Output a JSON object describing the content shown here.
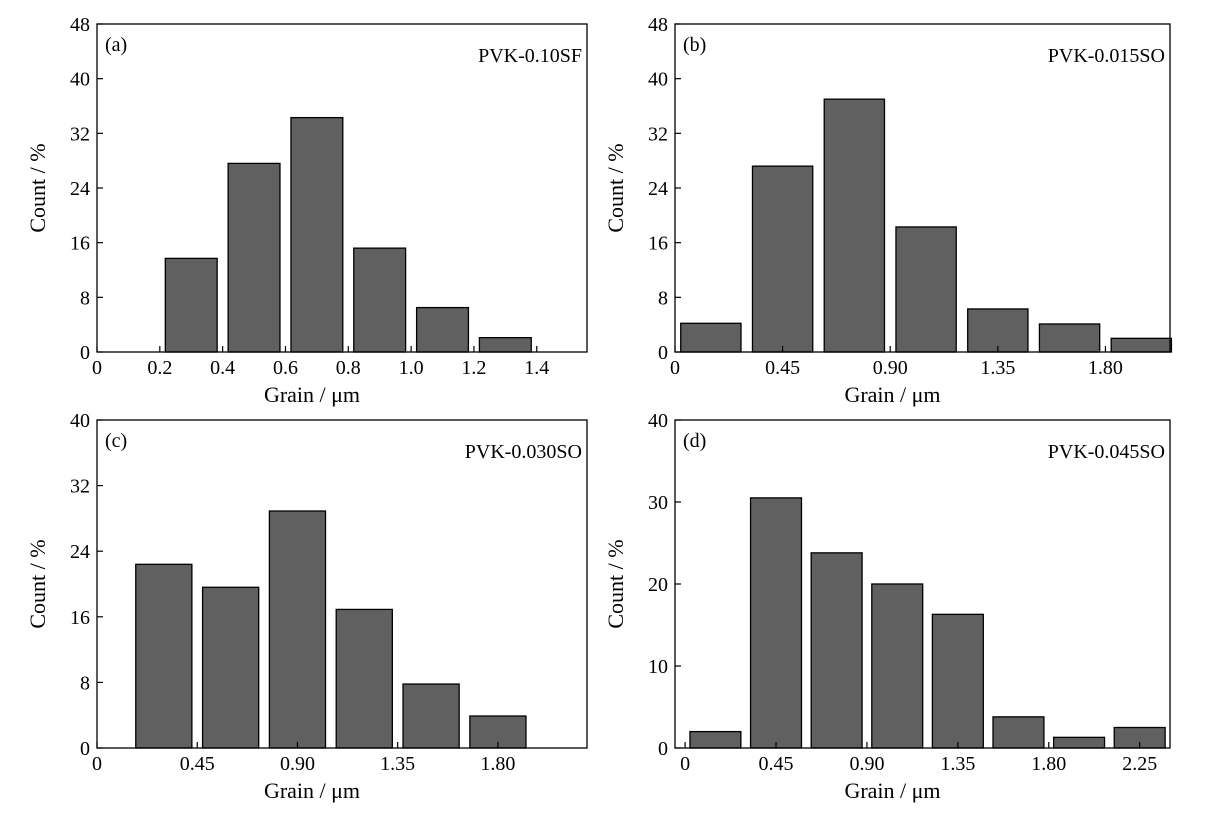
{
  "chart_data": [
    {
      "type": "bar",
      "panel_label": "(a)",
      "sample_label": "PVK-0.10SF",
      "xlabel": "Grain / μm",
      "ylabel": "Count / %",
      "xlim": [
        0,
        1.56
      ],
      "ylim": [
        0,
        48
      ],
      "xticks": [
        0,
        0.2,
        0.4,
        0.6,
        0.8,
        1.0,
        1.2,
        1.4
      ],
      "xtick_labels": [
        "0",
        "0.2",
        "0.4",
        "0.6",
        "0.8",
        "1.0",
        "1.2",
        "1.4"
      ],
      "yticks": [
        0,
        8,
        16,
        24,
        32,
        40,
        48
      ],
      "ytick_labels": [
        "0",
        "8",
        "16",
        "24",
        "32",
        "40",
        "48"
      ],
      "bin_width": 0.2,
      "bar_width": 0.165,
      "x": [
        0.3,
        0.5,
        0.7,
        0.9,
        1.1,
        1.3
      ],
      "values": [
        13.7,
        27.6,
        34.3,
        15.2,
        6.5,
        2.1
      ]
    },
    {
      "type": "bar",
      "panel_label": "(b)",
      "sample_label": "PVK-0.015SO",
      "xlabel": "Grain / μm",
      "ylabel": "Count / %",
      "xlim": [
        0,
        2.07
      ],
      "ylim": [
        0,
        48
      ],
      "xticks": [
        0,
        0.45,
        0.9,
        1.35,
        1.8
      ],
      "xtick_labels": [
        "0",
        "0.45",
        "0.90",
        "1.35",
        "1.80"
      ],
      "yticks": [
        0,
        8,
        16,
        24,
        32,
        40,
        48
      ],
      "ytick_labels": [
        "0",
        "8",
        "16",
        "24",
        "32",
        "40",
        "48"
      ],
      "bin_width": 0.3,
      "bar_width": 0.252,
      "x": [
        0.15,
        0.45,
        0.75,
        1.05,
        1.35,
        1.65,
        1.95
      ],
      "values": [
        4.2,
        27.2,
        37.0,
        18.3,
        6.3,
        4.1,
        2.0
      ]
    },
    {
      "type": "bar",
      "panel_label": "(c)",
      "sample_label": "PVK-0.030SO",
      "xlabel": "Grain / μm",
      "ylabel": "Count / %",
      "xlim": [
        0,
        2.2
      ],
      "ylim": [
        0,
        40
      ],
      "xticks": [
        0,
        0.45,
        0.9,
        1.35,
        1.8
      ],
      "xtick_labels": [
        "0",
        "0.45",
        "0.90",
        "1.35",
        "1.80"
      ],
      "yticks": [
        0,
        8,
        16,
        24,
        32,
        40
      ],
      "ytick_labels": [
        "0",
        "8",
        "16",
        "24",
        "32",
        "40"
      ],
      "bin_width": 0.3,
      "bar_width": 0.252,
      "x": [
        0.3,
        0.6,
        0.9,
        1.2,
        1.5,
        1.8
      ],
      "values": [
        22.4,
        19.6,
        28.9,
        16.9,
        7.8,
        3.9
      ]
    },
    {
      "type": "bar",
      "panel_label": "(d)",
      "sample_label": "PVK-0.045SO",
      "xlabel": "Grain / μm",
      "ylabel": "Count / %",
      "xlim": [
        -0.05,
        2.4
      ],
      "ylim": [
        0,
        40
      ],
      "xticks": [
        0,
        0.45,
        0.9,
        1.35,
        1.8,
        2.25
      ],
      "xtick_labels": [
        "0",
        "0.45",
        "0.90",
        "1.35",
        "1.80",
        "2.25"
      ],
      "yticks": [
        0,
        10,
        20,
        30,
        40
      ],
      "ytick_labels": [
        "0",
        "10",
        "20",
        "30",
        "40"
      ],
      "bin_width": 0.3,
      "bar_width": 0.252,
      "x": [
        0.15,
        0.45,
        0.75,
        1.05,
        1.35,
        1.65,
        1.95,
        2.25
      ],
      "values": [
        2.0,
        30.5,
        23.8,
        20.0,
        16.3,
        3.8,
        1.3,
        2.5
      ]
    }
  ]
}
